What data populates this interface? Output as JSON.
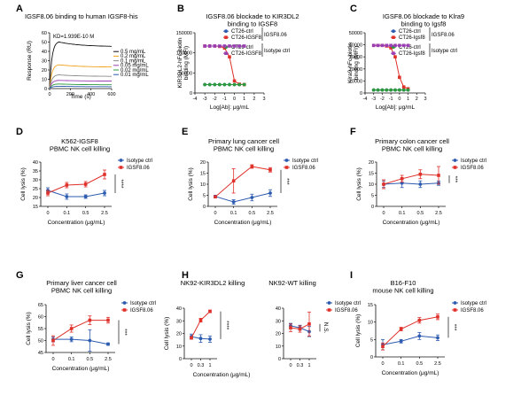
{
  "colors": {
    "red": "#e0302a",
    "blue": "#2d5bb0",
    "black": "#111111",
    "orange": "#f2a21c",
    "gray": "#8a8a8a",
    "purple": "#9a3fb3",
    "green": "#2c9a3c"
  },
  "chart_data": [
    {
      "panel": "A",
      "type": "line",
      "title": "IGSF8.06 binding to human IGSF8-his",
      "annotation": "KD=1.939E-10 M",
      "xlabel": "Time (s)",
      "ylabel": "Response (RU)",
      "xlim": [
        0,
        600
      ],
      "ylim": [
        0,
        60
      ],
      "xticks": [
        0,
        200,
        400,
        600
      ],
      "yticks": [
        0,
        10,
        20,
        30,
        40,
        50,
        60
      ],
      "series": [
        {
          "name": "0.5 mg/mL",
          "color": "#111111",
          "plateau": 51,
          "end": 45
        },
        {
          "name": "0.2 mg/mL",
          "color": "#f2a21c",
          "plateau": 26,
          "end": 23
        },
        {
          "name": "0.1 mg/mL",
          "color": "#8a8a8a",
          "plateau": 15,
          "end": 13
        },
        {
          "name": "0.05 mg/mL",
          "color": "#9a3fb3",
          "plateau": 9,
          "end": 8
        },
        {
          "name": "0.02 mg/mL",
          "color": "#2c9a3c",
          "plateau": 5,
          "end": 4
        },
        {
          "name": "0.01 mg/mL",
          "color": "#2d5bb0",
          "plateau": 2.5,
          "end": 2
        }
      ]
    },
    {
      "panel": "B",
      "type": "line",
      "title": "IGSF8.06 blockade to KIR3DL2 binding to IGSF8",
      "title_lines": [
        "IGSF8.06 blockade to KIR3DL2",
        "binding to IGSF8"
      ],
      "xlabel": "Log[Ab]: μg/mL",
      "ylabel": "KIR3DL2-hFc-biotin binding (MFI)",
      "ylabel_lines": [
        "KIR3DL2-hFc-biotin",
        "binding (MFI)"
      ],
      "xlim": [
        -4,
        3
      ],
      "ylim": [
        0,
        150000
      ],
      "xticks": [
        -4,
        -3,
        -2,
        -1,
        0,
        1,
        2,
        3
      ],
      "yticks": [
        0,
        50000,
        100000,
        150000
      ],
      "ytick_labels": [
        "0",
        "50000",
        "100000",
        "150000"
      ],
      "x": [
        -3,
        -2.5,
        -2,
        -1.5,
        -1,
        -0.5,
        0,
        0.5,
        1
      ],
      "series": [
        {
          "name": "CT26-ctrl",
          "group": "IGSF8.06",
          "color": "#2d5bb0",
          "values": [
            21000,
            21000,
            21000,
            21000,
            21000,
            21000,
            21000,
            21000,
            21000
          ]
        },
        {
          "name": "CT26-IGSF8",
          "group": "IGSF8.06",
          "color": "#e0302a",
          "values": [
            117000,
            117000,
            117000,
            116000,
            112000,
            90000,
            30000,
            22000,
            21000
          ]
        },
        {
          "name": "CT26-ctrl",
          "group": "Isotype ctrl",
          "color": "#2c9a3c",
          "values": [
            21000,
            21000,
            21000,
            21000,
            21000,
            21000,
            21000,
            21000,
            21000
          ]
        },
        {
          "name": "CT26-IGSF8",
          "group": "Isotype ctrl",
          "color": "#9a3fb3",
          "values": [
            117000,
            117000,
            117000,
            117000,
            117000,
            117000,
            117000,
            117000,
            117000
          ]
        }
      ],
      "legend_groups": [
        "IGSF8.06",
        "Isotype ctrl"
      ]
    },
    {
      "panel": "C",
      "type": "line",
      "title": "IGSF8.06 blockade to Klra9 binding to Igsf8",
      "title_lines": [
        "IGSF8.06 blockade to Klra9",
        "binding to Igsf8"
      ],
      "xlabel": "Log[Ab]: μg/mL",
      "ylabel": "Klra9-hFc-biotin binding (MFI)",
      "ylabel_lines": [
        "Klra9-hFc-biotin",
        "binding (MFI)"
      ],
      "xlim": [
        -4,
        3
      ],
      "ylim": [
        0,
        50000
      ],
      "xticks": [
        -4,
        -3,
        -2,
        -1,
        0,
        1,
        2,
        3
      ],
      "yticks": [
        0,
        10000,
        20000,
        30000,
        40000,
        50000
      ],
      "ytick_labels": [
        "0",
        "10000",
        "20000",
        "30000",
        "40000",
        "50000"
      ],
      "x": [
        -3,
        -2.5,
        -2,
        -1.5,
        -1,
        -0.5,
        0,
        0.5,
        1
      ],
      "series": [
        {
          "name": "CT26-ctrl",
          "group": "IGSF8.06",
          "color": "#2d5bb0",
          "values": [
            2500,
            2500,
            2500,
            2500,
            2500,
            2500,
            2500,
            2500,
            2500
          ]
        },
        {
          "name": "CT26-Igsf8",
          "group": "IGSF8.06",
          "color": "#e0302a",
          "values": [
            39500,
            39500,
            39500,
            39000,
            37500,
            30000,
            13000,
            5000,
            3500
          ]
        },
        {
          "name": "CT26-ctrl",
          "group": "Isotype ctrl",
          "color": "#2c9a3c",
          "values": [
            2500,
            2500,
            2500,
            2500,
            2500,
            2500,
            2500,
            2500,
            2500
          ]
        },
        {
          "name": "CT26-Igsf8",
          "group": "Isotype ctrl",
          "color": "#9a3fb3",
          "values": [
            39500,
            39500,
            39500,
            39500,
            39500,
            39500,
            39500,
            39500,
            39500
          ]
        }
      ],
      "legend_groups": [
        "IGSF8.06",
        "Isotype ctrl"
      ]
    },
    {
      "panel": "D",
      "type": "line",
      "title": "K562-IGSF8 PBMC NK cell killing",
      "title_lines": [
        "K562-IGSF8",
        "PBMC NK cell killing"
      ],
      "xlabel": "Concentration (μg/mL)",
      "ylabel": "Cell lysis (%)",
      "categories": [
        "0",
        "0.1",
        "0.5",
        "2.5"
      ],
      "ylim": [
        15,
        40
      ],
      "yticks": [
        15,
        20,
        25,
        30,
        35,
        40
      ],
      "series": [
        {
          "name": "Isotype ctrl",
          "color": "#2d5bb0",
          "values": [
            24,
            20.5,
            20.5,
            22.5
          ],
          "err": [
            1.5,
            1.5,
            1,
            1.5
          ]
        },
        {
          "name": "IGSF8.06",
          "color": "#e0302a",
          "values": [
            22.5,
            27,
            27.5,
            33
          ],
          "err": [
            1.5,
            1.5,
            1.5,
            2.5
          ]
        }
      ],
      "significance": "****"
    },
    {
      "panel": "E",
      "type": "line",
      "title": "Primary lung cancer cell PBMC NK cell killing",
      "title_lines": [
        "Primary lung cancer cell",
        "PBMC NK cell killing"
      ],
      "xlabel": "Concentration (μg/mL)",
      "ylabel": "Cell lysis (%)",
      "categories": [
        "0",
        "0.1",
        "0.5",
        "2.5"
      ],
      "ylim": [
        0,
        20
      ],
      "yticks": [
        0,
        5,
        10,
        15,
        20
      ],
      "series": [
        {
          "name": "Isotype ctrl",
          "color": "#2d5bb0",
          "values": [
            4.5,
            2,
            4,
            6
          ],
          "err": [
            0.5,
            1,
            1.5,
            1.5
          ]
        },
        {
          "name": "IGSF8.06",
          "color": "#e0302a",
          "values": [
            4.3,
            11.5,
            18,
            16.5
          ],
          "err": [
            0.5,
            5.5,
            0.8,
            1
          ]
        }
      ],
      "significance": "***"
    },
    {
      "panel": "F",
      "type": "line",
      "title": "Primary colon cancer cell PBMC NK cell killing",
      "title_lines": [
        "Primary colon cancer cell",
        "PBMC NK cell killing"
      ],
      "xlabel": "Concentration (μg/mL)",
      "ylabel": "Cell lysis (%)",
      "categories": [
        "0",
        "0.1",
        "0.5",
        "2.5"
      ],
      "ylim": [
        0,
        20
      ],
      "yticks": [
        0,
        5,
        10,
        15,
        20
      ],
      "series": [
        {
          "name": "Isotype ctrl",
          "color": "#2d5bb0",
          "values": [
            10,
            10.5,
            10,
            10.5
          ],
          "err": [
            1.5,
            2,
            1.5,
            1
          ]
        },
        {
          "name": "IGSF8.06",
          "color": "#e0302a",
          "values": [
            10,
            12.5,
            14.5,
            14
          ],
          "err": [
            2,
            1.5,
            2,
            4
          ]
        }
      ],
      "significance": "***"
    },
    {
      "panel": "G",
      "type": "line",
      "title": "Primary liver cancer cell PBMC NK cell killing",
      "title_lines": [
        "Primary liver cancer cell",
        "PBMC NK cell killing"
      ],
      "xlabel": "Concentration (μg/mL)",
      "ylabel": "Cell lysis (%)",
      "categories": [
        "0",
        "0.1",
        "0.5",
        "2.5"
      ],
      "ylim": [
        45,
        65
      ],
      "yticks": [
        45,
        50,
        55,
        60,
        65
      ],
      "series": [
        {
          "name": "Isotype ctrl",
          "color": "#2d5bb0",
          "values": [
            50.5,
            50.5,
            50,
            48.5
          ],
          "err": [
            1,
            1,
            4.5,
            0.5
          ]
        },
        {
          "name": "IGSF8.06",
          "color": "#e0302a",
          "values": [
            50,
            55,
            58.5,
            58.5
          ],
          "err": [
            2,
            1.5,
            1.8,
            1.2
          ]
        }
      ],
      "significance": "***"
    },
    {
      "panel": "H",
      "type": "line",
      "title": "NK92-KIR3DL2 killing",
      "xlabel": "Concentration (μg/mL)",
      "ylabel": "Cell lysis (%)",
      "categories": [
        "0",
        "0.3",
        "1"
      ],
      "ylim": [
        0,
        40
      ],
      "yticks": [
        0,
        10,
        20,
        30,
        40
      ],
      "series": [
        {
          "name": "Isotype ctrl",
          "color": "#2d5bb0",
          "values": [
            17.5,
            16,
            15.5
          ],
          "err": [
            2,
            3,
            2.5
          ]
        },
        {
          "name": "IGSF8.06",
          "color": "#e0302a",
          "values": [
            16.5,
            30.5,
            37.5
          ],
          "err": [
            1,
            1.5,
            1
          ]
        }
      ],
      "significance": "****"
    },
    {
      "panel": "H2",
      "type": "line",
      "title": "NK92-WT killing",
      "categories": [
        "0",
        "0.3",
        "1"
      ],
      "ylim": [
        0,
        40
      ],
      "yticks": [
        0,
        10,
        20,
        30,
        40
      ],
      "series": [
        {
          "name": "Isotype ctrl",
          "color": "#2d5bb0",
          "values": [
            26,
            24.5,
            21.5
          ],
          "err": [
            2,
            2,
            4
          ]
        },
        {
          "name": "IGSF8.06",
          "color": "#e0302a",
          "values": [
            24.5,
            23.5,
            27.5
          ],
          "err": [
            3,
            2.5,
            9.5
          ]
        }
      ],
      "significance": "N.S."
    },
    {
      "panel": "I",
      "type": "line",
      "title": "B16-F10 mouse NK cell killing",
      "title_lines": [
        "B16-F10",
        "mouse NK cell killing"
      ],
      "xlabel": "Concentration (μg/mL)",
      "ylabel": "Cell lysis (%)",
      "categories": [
        "0",
        "0.1",
        "0.5",
        "2.5"
      ],
      "ylim": [
        0,
        15
      ],
      "yticks": [
        0,
        5,
        10,
        15
      ],
      "series": [
        {
          "name": "Isotype ctrl",
          "color": "#2d5bb0",
          "values": [
            3.5,
            4.5,
            6,
            5.5
          ],
          "err": [
            1.5,
            0.5,
            1,
            0.8
          ]
        },
        {
          "name": "IGSF8.06",
          "color": "#e0302a",
          "values": [
            3,
            8,
            10.5,
            11.5
          ],
          "err": [
            1,
            0.5,
            0.8,
            0.8
          ]
        }
      ],
      "significance": "***"
    }
  ]
}
